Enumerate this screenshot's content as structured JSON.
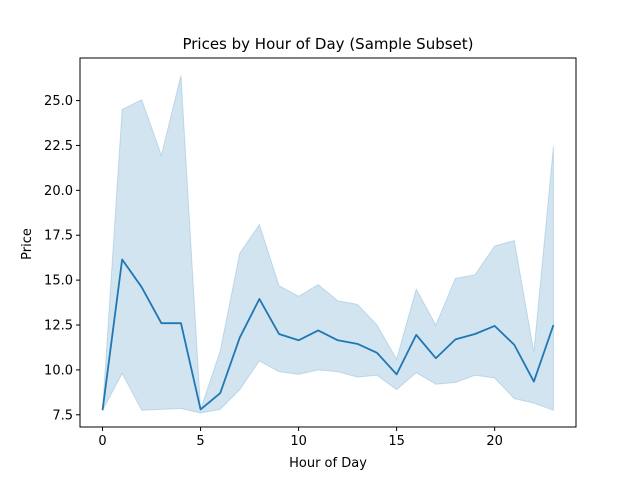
{
  "chart_data": {
    "type": "line",
    "title": "Prices by Hour of Day (Sample Subset)",
    "xlabel": "Hour of Day",
    "ylabel": "Price",
    "xlim": [
      -1.15,
      24.15
    ],
    "ylim": [
      6.82,
      27.37
    ],
    "xticks": [
      0,
      5,
      10,
      15,
      20
    ],
    "yticks": [
      7.5,
      10.0,
      12.5,
      15.0,
      17.5,
      20.0,
      22.5,
      25.0
    ],
    "grid": false,
    "line_color": "#1f77b4",
    "band_color": "#1f77b4",
    "series": [
      {
        "x": [
          0,
          1,
          2,
          3,
          4,
          5,
          6,
          7,
          8,
          9,
          10,
          11,
          12,
          13,
          14,
          15,
          16,
          17,
          18,
          19,
          20,
          21,
          22,
          23
        ],
        "values": [
          7.75,
          16.15,
          14.6,
          12.6,
          12.6,
          7.8,
          8.7,
          11.8,
          13.95,
          12.0,
          11.65,
          12.2,
          11.65,
          11.45,
          10.95,
          9.75,
          11.95,
          10.65,
          11.7,
          12.0,
          12.45,
          11.4,
          9.35,
          12.5
        ],
        "lower": [
          7.75,
          9.8,
          7.75,
          7.8,
          7.85,
          7.6,
          7.8,
          8.9,
          10.5,
          9.9,
          9.75,
          10.0,
          9.9,
          9.6,
          9.7,
          8.9,
          9.85,
          9.2,
          9.3,
          9.7,
          9.55,
          8.4,
          8.15,
          7.75
        ],
        "upper": [
          7.75,
          24.5,
          25.05,
          21.95,
          26.4,
          7.8,
          11.05,
          16.5,
          18.1,
          14.7,
          14.1,
          14.75,
          13.85,
          13.65,
          12.5,
          10.6,
          14.5,
          12.5,
          15.1,
          15.3,
          16.9,
          17.2,
          11.0,
          22.45
        ]
      }
    ]
  }
}
